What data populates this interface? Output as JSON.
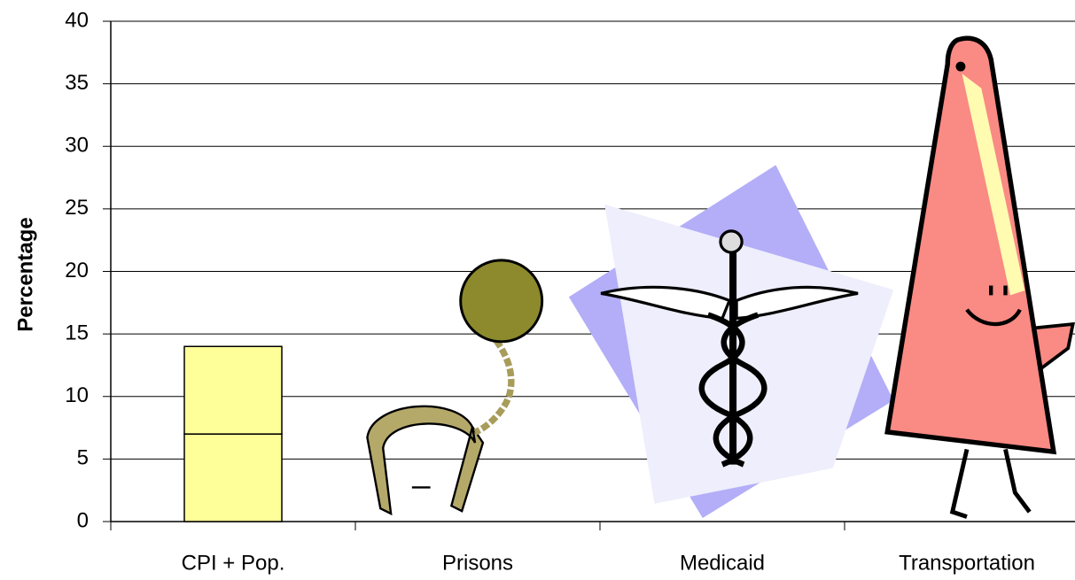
{
  "chart_data": {
    "type": "pictograph",
    "y_label": "Percentage",
    "categories": [
      "CPI + Pop.",
      "Prisons",
      "Medicaid",
      "Transportation"
    ],
    "series": [
      {
        "values": [
          7,
          21,
          28.5,
          38.5
        ],
        "color": "#ffff99"
      },
      {
        "values": [
          7,
          null,
          null,
          null
        ],
        "color": "#ffff99"
      }
    ],
    "ylim": [
      0,
      40
    ],
    "yticks": [
      0,
      5,
      10,
      15,
      20,
      25,
      30,
      35,
      40
    ],
    "grid": true
  }
}
